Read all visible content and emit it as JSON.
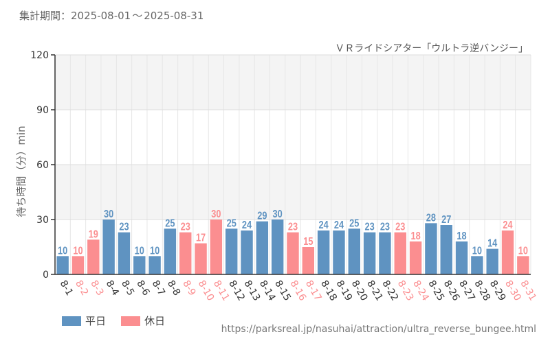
{
  "header": {
    "period_label": "集計期間：",
    "period_start": "2025-08-01",
    "period_sep": "～",
    "period_end": "2025-08-31",
    "attraction": "ＶＲライドシアター「ウルトラ逆バンジー」"
  },
  "legend": {
    "weekday": "平日",
    "holiday": "休日"
  },
  "source": "https://parksreal.jp/nasuhai/attraction/ultra_reverse_bungee.html",
  "colors": {
    "weekday": "#5f93c1",
    "holiday": "#fb8e90",
    "axis": "#333333",
    "grid": "#e6e6e6",
    "band": "#f4f4f4"
  },
  "chart_data": {
    "type": "bar",
    "title": "ＶＲライドシアター「ウルトラ逆バンジー」",
    "ylabel": "待ち時間（分）min",
    "xlabel": "",
    "ylim": [
      0,
      120
    ],
    "yticks": [
      0,
      30,
      60,
      90,
      120
    ],
    "categories": [
      "8-1",
      "8-2",
      "8-3",
      "8-4",
      "8-5",
      "8-6",
      "8-7",
      "8-8",
      "8-9",
      "8-10",
      "8-11",
      "8-12",
      "8-13",
      "8-14",
      "8-15",
      "8-16",
      "8-17",
      "8-18",
      "8-19",
      "8-20",
      "8-21",
      "8-22",
      "8-23",
      "8-24",
      "8-25",
      "8-26",
      "8-27",
      "8-28",
      "8-29",
      "8-30",
      "8-31"
    ],
    "values": [
      10,
      10,
      19,
      30,
      23,
      10,
      10,
      25,
      23,
      17,
      30,
      25,
      24,
      29,
      30,
      23,
      15,
      24,
      24,
      25,
      23,
      23,
      23,
      18,
      28,
      27,
      18,
      10,
      14,
      24,
      10
    ],
    "day_type": [
      "weekday",
      "holiday",
      "holiday",
      "weekday",
      "weekday",
      "weekday",
      "weekday",
      "weekday",
      "holiday",
      "holiday",
      "holiday",
      "weekday",
      "weekday",
      "weekday",
      "weekday",
      "holiday",
      "holiday",
      "weekday",
      "weekday",
      "weekday",
      "weekday",
      "weekday",
      "holiday",
      "holiday",
      "weekday",
      "weekday",
      "weekday",
      "weekday",
      "weekday",
      "holiday",
      "holiday"
    ],
    "series": [
      {
        "name": "平日",
        "type": "weekday"
      },
      {
        "name": "休日",
        "type": "holiday"
      }
    ]
  }
}
